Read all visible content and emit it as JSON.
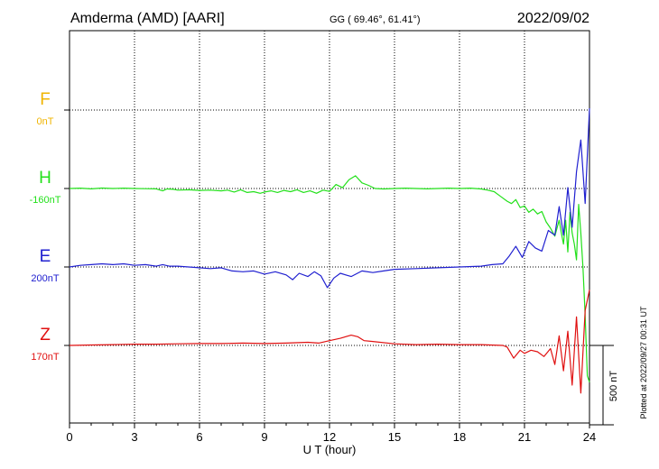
{
  "header": {
    "station": "Amderma (AMD)  [AARI]",
    "coords": "GG ( 69.46°,  61.41°)",
    "date": "2022/09/02"
  },
  "side_note": "Plotted at 2022/09/27 00:31 UT",
  "scale_bar_label": "500 nT",
  "chart_data": {
    "type": "line",
    "xlabel": "U T (hour)",
    "xlim": [
      0,
      24
    ],
    "x_ticks": [
      "0",
      "3",
      "6",
      "9",
      "12",
      "15",
      "18",
      "21",
      "24"
    ],
    "scale_nT": 500,
    "series": [
      {
        "name": "F",
        "baseline": "0nT",
        "color": "#f0b400",
        "x": [],
        "y": []
      },
      {
        "name": "H",
        "baseline": "-160nT",
        "color": "#22e01a",
        "x": [
          0,
          0.5,
          1,
          1.5,
          2,
          2.5,
          3,
          3.5,
          4,
          4.3,
          4.5,
          4.8,
          5,
          5.5,
          6,
          6.5,
          7,
          7.3,
          7.6,
          7.9,
          8.2,
          8.5,
          8.8,
          9,
          9.3,
          9.6,
          9.9,
          10.2,
          10.5,
          10.8,
          11.1,
          11.4,
          11.7,
          12,
          12.3,
          12.6,
          12.9,
          13.2,
          13.5,
          13.8,
          14.1,
          14.5,
          15,
          15.5,
          16,
          16.5,
          17,
          17.5,
          18,
          18.5,
          19,
          19.3,
          19.6,
          19.9,
          20.2,
          20.4,
          20.6,
          20.8,
          21,
          21.2,
          21.4,
          21.6,
          21.8,
          22,
          22.2,
          22.4,
          22.6,
          22.7,
          22.8,
          22.9,
          23,
          23.1,
          23.2,
          23.3,
          23.4,
          23.5,
          23.6,
          23.7,
          23.8,
          23.9,
          24
        ],
        "y": [
          0,
          2,
          -2,
          3,
          0,
          2,
          0,
          -1,
          -2,
          -15,
          -3,
          -5,
          -10,
          -8,
          -12,
          -10,
          -15,
          -10,
          -22,
          -8,
          -25,
          -20,
          -30,
          -22,
          -15,
          -25,
          -12,
          -20,
          -8,
          -25,
          -15,
          -30,
          -10,
          -18,
          25,
          5,
          55,
          80,
          35,
          20,
          0,
          -3,
          0,
          2,
          0,
          -2,
          0,
          2,
          0,
          2,
          -3,
          -10,
          -20,
          -50,
          -80,
          -95,
          -70,
          -120,
          -110,
          -150,
          -130,
          -160,
          -145,
          -210,
          -250,
          -300,
          -200,
          -280,
          -350,
          -200,
          -400,
          -150,
          -280,
          -350,
          -450,
          -100,
          -280,
          -500,
          -800,
          -1180,
          -1220
        ]
      },
      {
        "name": "E",
        "baseline": "200nT",
        "color": "#2020d0",
        "x": [
          0,
          0.5,
          1,
          1.5,
          2,
          2.5,
          3,
          3.5,
          4,
          4.3,
          4.6,
          5,
          5.5,
          6,
          6.5,
          7,
          7.5,
          8,
          8.5,
          9,
          9.5,
          10,
          10.3,
          10.6,
          11,
          11.3,
          11.6,
          11.9,
          12.2,
          12.5,
          13,
          13.5,
          14,
          14.5,
          15,
          16,
          17,
          18,
          19,
          19.5,
          20,
          20.3,
          20.6,
          20.9,
          21.2,
          21.5,
          21.8,
          22.1,
          22.4,
          22.6,
          22.8,
          23,
          23.2,
          23.4,
          23.6,
          23.8,
          24
        ],
        "y": [
          0,
          10,
          15,
          20,
          15,
          20,
          10,
          15,
          5,
          15,
          5,
          5,
          0,
          -5,
          -10,
          -5,
          -25,
          -30,
          -25,
          -45,
          -30,
          -50,
          -80,
          -40,
          -60,
          -30,
          -55,
          -130,
          -70,
          -40,
          -60,
          -25,
          -35,
          -25,
          -15,
          -10,
          -5,
          0,
          5,
          15,
          20,
          70,
          130,
          60,
          160,
          120,
          100,
          230,
          200,
          380,
          200,
          500,
          250,
          600,
          800,
          400,
          1000
        ]
      },
      {
        "name": "Z",
        "baseline": "170nT",
        "color": "#e01010",
        "x": [
          0,
          1,
          2,
          3,
          4,
          5,
          6,
          7,
          8,
          9,
          10,
          11,
          11.5,
          12,
          12.5,
          13,
          13.3,
          13.6,
          14,
          15,
          16,
          17,
          18,
          19,
          20,
          20.2,
          20.5,
          20.8,
          21,
          21.3,
          21.6,
          21.9,
          22.2,
          22.4,
          22.6,
          22.8,
          23,
          23.2,
          23.4,
          23.6,
          23.8,
          24
        ],
        "y": [
          0,
          3,
          5,
          8,
          8,
          10,
          12,
          12,
          15,
          12,
          15,
          20,
          15,
          30,
          45,
          65,
          55,
          30,
          25,
          10,
          5,
          8,
          5,
          5,
          0,
          -10,
          -80,
          -30,
          -50,
          -30,
          -40,
          -70,
          -20,
          -120,
          60,
          -160,
          90,
          -250,
          180,
          -300,
          220,
          350
        ]
      }
    ]
  }
}
